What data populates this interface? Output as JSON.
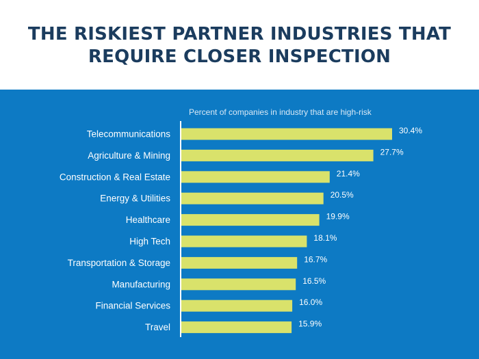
{
  "title": {
    "line1": "THE RISKIEST PARTNER INDUSTRIES THAT",
    "line2": "REQUIRE CLOSER INSPECTION"
  },
  "colors": {
    "panel": "#0d7ac4",
    "bar": "#d9e26b",
    "title": "#1b3c5e",
    "axis": "#ffffff"
  },
  "chart_data": {
    "type": "bar",
    "orientation": "horizontal",
    "subtitle": "Percent of companies in industry that are high-risk",
    "categories": [
      "Telecommunications",
      "Agriculture & Mining",
      "Construction & Real Estate",
      "Energy & Utilities",
      "Healthcare",
      "High Tech",
      "Transportation & Storage",
      "Manufacturing",
      "Financial Services",
      "Travel"
    ],
    "values": [
      30.4,
      27.7,
      21.4,
      20.5,
      19.9,
      18.1,
      16.7,
      16.5,
      16.0,
      15.9
    ],
    "value_labels": [
      "30.4%",
      "27.7%",
      "21.4%",
      "20.5%",
      "19.9%",
      "18.1%",
      "16.7%",
      "16.5%",
      "16.0%",
      "15.9%"
    ],
    "xlim": [
      0,
      30.4
    ],
    "grid": false,
    "legend": "none"
  }
}
